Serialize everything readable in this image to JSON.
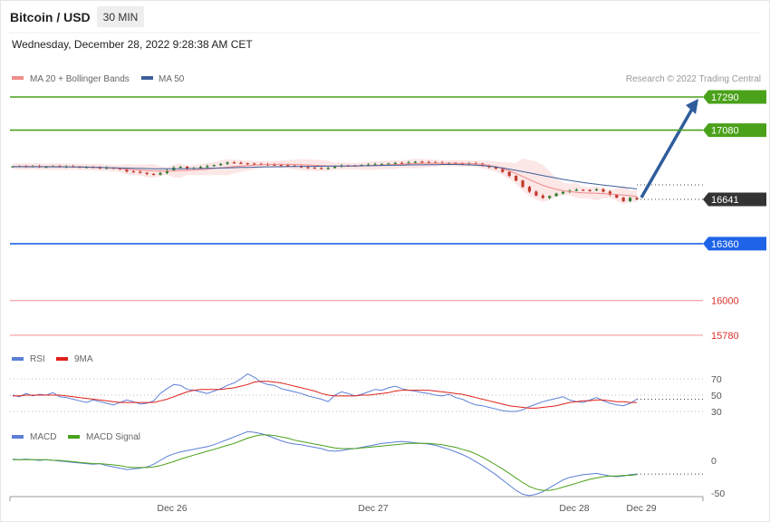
{
  "header": {
    "title": "Bitcoin / USD",
    "interval": "30 MIN",
    "datetime": "Wednesday, December 28, 2022 9:28:38 AM CET",
    "copyright": "Research © 2022 Trading Central"
  },
  "legend": {
    "ma20_label": "MA 20 + Bollinger Bands",
    "ma50_label": "MA 50",
    "rsi_label": "RSI",
    "rsi_ma_label": "9MA",
    "macd_label": "MACD",
    "macd_signal_label": "MACD Signal"
  },
  "colors": {
    "resistance": "#4aa11a",
    "support": "#1f64e8",
    "current": "#333333",
    "red_level": "#d9322b",
    "ma20": "#f08a8a",
    "ma50": "#3d5f9a",
    "rsi": "#5b7fd6",
    "rsi_ma": "#e0201b",
    "macd": "#5b7fd6",
    "macd_signal": "#4aa11a",
    "arrow": "#2f5d9c",
    "candle_up": "#2e7d2e",
    "candle_down": "#c0392b"
  },
  "chart_data": {
    "type": "line",
    "x_labels": [
      "Dec 26",
      "Dec 27",
      "Dec 28",
      "Dec 29"
    ],
    "levels": [
      {
        "value": 17290,
        "label": "17290",
        "kind": "resistance"
      },
      {
        "value": 17080,
        "label": "17080",
        "kind": "resistance"
      },
      {
        "value": 16641,
        "label": "16641",
        "kind": "current"
      },
      {
        "value": 16360,
        "label": "16360",
        "kind": "support"
      },
      {
        "value": 16000,
        "label": "16000",
        "kind": "red"
      },
      {
        "value": 15780,
        "label": "15780",
        "kind": "red"
      }
    ],
    "price": [
      16850,
      16852,
      16848,
      16851,
      16846,
      16849,
      16853,
      16847,
      16850,
      16848,
      16845,
      16847,
      16843,
      16838,
      16842,
      16836,
      16833,
      16818,
      16816,
      16810,
      16802,
      16798,
      16808,
      16825,
      16842,
      16848,
      16835,
      16840,
      16846,
      16852,
      16858,
      16866,
      16875,
      16872,
      16870,
      16868,
      16866,
      16864,
      16861,
      16860,
      16858,
      16855,
      16850,
      16845,
      16842,
      16840,
      16838,
      16840,
      16848,
      16856,
      16855,
      16854,
      16858,
      16862,
      16864,
      16866,
      16868,
      16872,
      16870,
      16875,
      16880,
      16878,
      16876,
      16874,
      16870,
      16872,
      16868,
      16866,
      16870,
      16868,
      16856,
      16845,
      16835,
      16815,
      16790,
      16760,
      16720,
      16690,
      16665,
      16650,
      16662,
      16678,
      16688,
      16696,
      16702,
      16700,
      16698,
      16705,
      16690,
      16670,
      16652,
      16630,
      16650,
      16641
    ],
    "ma20": [
      16850,
      16850,
      16850,
      16850,
      16849,
      16849,
      16849,
      16849,
      16848,
      16848,
      16847,
      16846,
      16845,
      16843,
      16841,
      16839,
      16836,
      16832,
      16829,
      16826,
      16823,
      16821,
      16820,
      16820,
      16821,
      16823,
      16825,
      16827,
      16830,
      16833,
      16837,
      16841,
      16845,
      16849,
      16852,
      16855,
      16858,
      16860,
      16862,
      16863,
      16863,
      16863,
      16862,
      16861,
      16859,
      16857,
      16855,
      16853,
      16852,
      16852,
      16852,
      16852,
      16853,
      16854,
      16856,
      16858,
      16860,
      16862,
      16864,
      16866,
      16868,
      16869,
      16870,
      16870,
      16870,
      16870,
      16870,
      16869,
      16868,
      16866,
      16862,
      16856,
      16848,
      16836,
      16822,
      16805,
      16786,
      16766,
      16747,
      16730,
      16716,
      16705,
      16696,
      16690,
      16686,
      16683,
      16681,
      16680,
      16678,
      16675,
      16672,
      16668,
      16664,
      16660
    ],
    "ma50": [
      16848,
      16848,
      16848,
      16848,
      16848,
      16848,
      16847,
      16847,
      16847,
      16846,
      16846,
      16845,
      16844,
      16843,
      16842,
      16841,
      16840,
      16839,
      16838,
      16837,
      16836,
      16835,
      16835,
      16835,
      16835,
      16835,
      16836,
      16836,
      16837,
      16838,
      16839,
      16840,
      16841,
      16842,
      16843,
      16844,
      16845,
      16846,
      16847,
      16848,
      16848,
      16849,
      16849,
      16850,
      16850,
      16850,
      16851,
      16851,
      16852,
      16852,
      16853,
      16853,
      16854,
      16854,
      16855,
      16856,
      16857,
      16857,
      16858,
      16859,
      16860,
      16860,
      16861,
      16861,
      16862,
      16862,
      16862,
      16861,
      16860,
      16858,
      16855,
      16851,
      16846,
      16840,
      16833,
      16825,
      16817,
      16809,
      16800,
      16792,
      16784,
      16776,
      16768,
      16761,
      16754,
      16748,
      16742,
      16737,
      16732,
      16727,
      16722,
      16717,
      16712,
      16707
    ],
    "rsi": [
      50,
      48,
      52,
      49,
      51,
      50,
      53,
      48,
      47,
      45,
      43,
      41,
      44,
      42,
      40,
      38,
      41,
      44,
      42,
      39,
      40,
      43,
      52,
      58,
      63,
      62,
      57,
      56,
      54,
      52,
      55,
      58,
      62,
      65,
      70,
      76,
      72,
      66,
      63,
      62,
      58,
      56,
      54,
      52,
      49,
      47,
      45,
      42,
      50,
      54,
      52,
      49,
      51,
      54,
      57,
      56,
      59,
      61,
      58,
      56,
      55,
      53,
      52,
      50,
      49,
      51,
      47,
      45,
      41,
      38,
      37,
      35,
      33,
      31,
      30,
      30,
      32,
      36,
      39,
      42,
      44,
      46,
      48,
      44,
      42,
      41,
      44,
      47,
      43,
      40,
      38,
      37,
      40,
      45
    ],
    "rsi_ma": [
      49,
      49,
      50,
      50,
      50,
      50,
      50,
      50,
      49,
      48,
      47,
      46,
      45,
      44,
      43,
      42,
      41,
      41,
      41,
      41,
      41,
      41,
      43,
      45,
      48,
      51,
      54,
      56,
      57,
      57,
      57,
      57,
      58,
      59,
      61,
      63,
      66,
      67,
      67,
      66,
      65,
      63,
      61,
      59,
      57,
      55,
      52,
      50,
      49,
      49,
      49,
      49,
      50,
      50,
      51,
      52,
      53,
      55,
      56,
      56,
      56,
      56,
      56,
      55,
      54,
      53,
      52,
      51,
      49,
      47,
      45,
      43,
      41,
      39,
      37,
      36,
      35,
      34,
      34,
      35,
      36,
      37,
      39,
      41,
      42,
      43,
      43,
      44,
      44,
      43,
      42,
      42,
      41,
      41
    ],
    "macd": [
      2,
      1,
      2,
      1,
      0,
      1,
      0,
      -1,
      -2,
      -3,
      -4,
      -5,
      -6,
      -5,
      -8,
      -10,
      -12,
      -14,
      -13,
      -12,
      -10,
      -6,
      0,
      6,
      10,
      13,
      15,
      17,
      19,
      21,
      24,
      28,
      32,
      36,
      40,
      44,
      43,
      41,
      38,
      34,
      30,
      27,
      25,
      24,
      22,
      20,
      18,
      15,
      14,
      15,
      17,
      18,
      20,
      22,
      24,
      26,
      27,
      28,
      29,
      28,
      27,
      26,
      25,
      23,
      20,
      17,
      13,
      9,
      4,
      -2,
      -8,
      -15,
      -22,
      -30,
      -38,
      -46,
      -52,
      -54,
      -52,
      -48,
      -42,
      -36,
      -30,
      -26,
      -24,
      -22,
      -21,
      -20,
      -22,
      -24,
      -25,
      -24,
      -22,
      -21
    ],
    "macd_signal": [
      1,
      1,
      1,
      1,
      1,
      1,
      0,
      0,
      -1,
      -2,
      -3,
      -4,
      -5,
      -5,
      -6,
      -7,
      -8,
      -10,
      -11,
      -11,
      -11,
      -10,
      -8,
      -5,
      -2,
      2,
      5,
      8,
      11,
      14,
      17,
      20,
      23,
      26,
      30,
      34,
      37,
      39,
      39,
      38,
      36,
      34,
      31,
      29,
      27,
      25,
      23,
      21,
      19,
      18,
      18,
      18,
      19,
      20,
      21,
      22,
      23,
      24,
      25,
      26,
      26,
      26,
      26,
      25,
      24,
      22,
      20,
      17,
      14,
      10,
      5,
      -1,
      -7,
      -13,
      -20,
      -27,
      -34,
      -40,
      -44,
      -46,
      -46,
      -44,
      -41,
      -38,
      -35,
      -32,
      -29,
      -27,
      -25,
      -24,
      -24,
      -23,
      -23,
      -22
    ],
    "rsi_ticks": [
      {
        "value": 70,
        "label": "70"
      },
      {
        "value": 50,
        "label": "50"
      },
      {
        "value": 30,
        "label": "30"
      }
    ],
    "macd_ticks": [
      {
        "value": 0,
        "label": "0"
      },
      {
        "value": -50,
        "label": "-50"
      }
    ],
    "forecast_target": 17290
  }
}
